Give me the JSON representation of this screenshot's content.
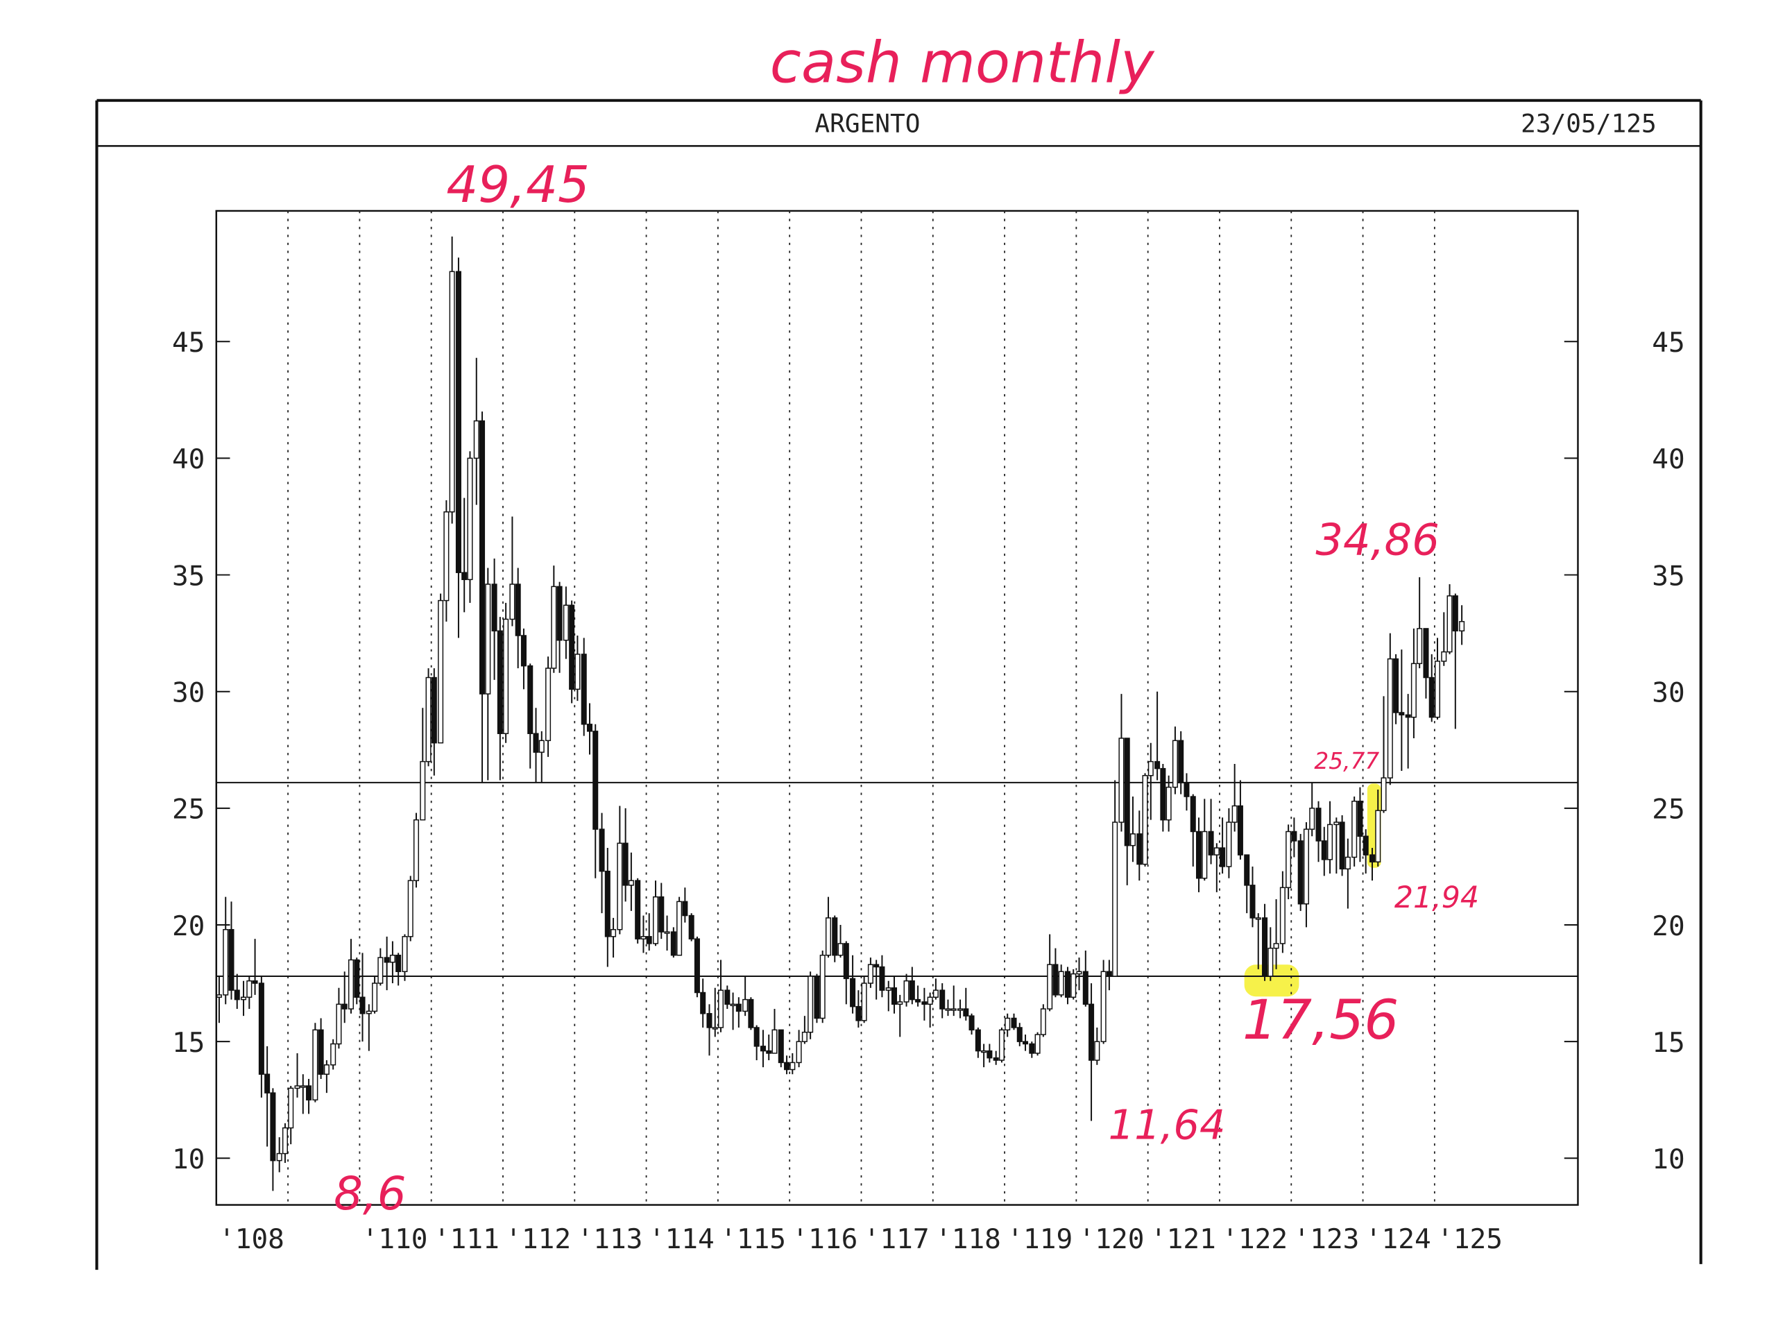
{
  "note": "cash monthly",
  "chart_data": {
    "type": "candlestick",
    "title": "ARGENTO",
    "date": "23/05/125",
    "xlim": [
      108,
      127
    ],
    "ylim": [
      8,
      50.6
    ],
    "xticks": [
      {
        "value": 108,
        "label": "'108"
      },
      {
        "value": 109,
        "label": null
      },
      {
        "value": 110,
        "label": "'110"
      },
      {
        "value": 111,
        "label": "'111"
      },
      {
        "value": 112,
        "label": "'112"
      },
      {
        "value": 113,
        "label": "'113"
      },
      {
        "value": 114,
        "label": "'114"
      },
      {
        "value": 115,
        "label": "'115"
      },
      {
        "value": 116,
        "label": "'116"
      },
      {
        "value": 117,
        "label": "'117"
      },
      {
        "value": 118,
        "label": "'118"
      },
      {
        "value": 119,
        "label": "'119"
      },
      {
        "value": 120,
        "label": "'120"
      },
      {
        "value": 121,
        "label": "'121"
      },
      {
        "value": 122,
        "label": "'122"
      },
      {
        "value": 123,
        "label": "'123"
      },
      {
        "value": 124,
        "label": "'124"
      },
      {
        "value": 125,
        "label": "'125"
      }
    ],
    "yticks": [
      10,
      15,
      20,
      25,
      30,
      35,
      40,
      45
    ],
    "hlines": [
      26.1,
      17.8
    ],
    "annotations": [
      "49,45",
      "34,86",
      "25,77",
      "21,94",
      "17,56",
      "11,64",
      "8,6"
    ],
    "x": [
      108.04,
      108.13,
      108.21,
      108.29,
      108.38,
      108.46,
      108.54,
      108.63,
      108.71,
      108.79,
      108.88,
      108.96,
      109.04,
      109.13,
      109.21,
      109.29,
      109.38,
      109.46,
      109.54,
      109.63,
      109.71,
      109.79,
      109.88,
      109.96,
      110.04,
      110.13,
      110.21,
      110.29,
      110.38,
      110.46,
      110.54,
      110.63,
      110.71,
      110.79,
      110.88,
      110.96,
      111.04,
      111.13,
      111.21,
      111.29,
      111.38,
      111.46,
      111.54,
      111.63,
      111.71,
      111.79,
      111.88,
      111.96,
      112.04,
      112.13,
      112.21,
      112.29,
      112.38,
      112.46,
      112.54,
      112.63,
      112.71,
      112.79,
      112.88,
      112.96,
      113.04,
      113.13,
      113.21,
      113.29,
      113.38,
      113.46,
      113.54,
      113.63,
      113.71,
      113.79,
      113.88,
      113.96,
      114.04,
      114.13,
      114.21,
      114.29,
      114.38,
      114.46,
      114.54,
      114.63,
      114.71,
      114.79,
      114.88,
      114.96,
      115.04,
      115.13,
      115.21,
      115.29,
      115.38,
      115.46,
      115.54,
      115.63,
      115.71,
      115.79,
      115.88,
      115.96,
      116.04,
      116.13,
      116.21,
      116.29,
      116.38,
      116.46,
      116.54,
      116.63,
      116.71,
      116.79,
      116.88,
      116.96,
      117.04,
      117.13,
      117.21,
      117.29,
      117.38,
      117.46,
      117.54,
      117.63,
      117.71,
      117.79,
      117.88,
      117.96,
      118.04,
      118.13,
      118.21,
      118.29,
      118.38,
      118.46,
      118.54,
      118.63,
      118.71,
      118.79,
      118.88,
      118.96,
      119.04,
      119.13,
      119.21,
      119.29,
      119.38,
      119.46,
      119.54,
      119.63,
      119.71,
      119.79,
      119.88,
      119.96,
      120.04,
      120.13,
      120.21,
      120.29,
      120.38,
      120.46,
      120.54,
      120.63,
      120.71,
      120.79,
      120.88,
      120.96,
      121.04,
      121.13,
      121.21,
      121.29,
      121.38,
      121.46,
      121.54,
      121.63,
      121.71,
      121.79,
      121.88,
      121.96,
      122.04,
      122.13,
      122.21,
      122.29,
      122.38,
      122.46,
      122.54,
      122.63,
      122.71,
      122.79,
      122.88,
      122.96,
      123.04,
      123.13,
      123.21,
      123.29,
      123.38,
      123.46,
      123.54,
      123.63,
      123.71,
      123.79,
      123.88,
      123.96,
      124.04,
      124.13,
      124.21,
      124.29,
      124.38,
      124.46,
      124.54,
      124.63,
      124.71,
      124.79,
      124.88,
      124.96,
      125.04,
      125.13,
      125.21,
      125.29,
      125.38
    ],
    "open": [
      16.9,
      17.0,
      19.8,
      17.2,
      16.8,
      16.9,
      17.6,
      17.5,
      13.6,
      12.8,
      9.9,
      10.2,
      11.3,
      13.0,
      13.1,
      13.1,
      12.5,
      15.5,
      13.6,
      14.0,
      14.9,
      16.6,
      16.4,
      18.5,
      16.9,
      16.2,
      16.3,
      17.5,
      18.6,
      18.4,
      18.7,
      18.0,
      19.5,
      21.9,
      24.5,
      27.0,
      30.6,
      27.8,
      33.9,
      37.7,
      48.0,
      35.1,
      34.8,
      40.0,
      41.6,
      29.9,
      34.6,
      32.6,
      28.2,
      33.1,
      34.6,
      32.4,
      31.1,
      28.2,
      27.4,
      27.9,
      31.0,
      34.5,
      32.2,
      33.7,
      30.1,
      31.6,
      28.6,
      28.3,
      24.1,
      22.3,
      19.5,
      19.8,
      23.5,
      21.7,
      21.9,
      19.4,
      19.5,
      19.2,
      21.2,
      19.7,
      19.7,
      18.7,
      21.0,
      20.4,
      19.4,
      17.1,
      16.2,
      15.6,
      15.6,
      17.2,
      16.6,
      16.6,
      16.3,
      16.8,
      15.6,
      14.8,
      14.6,
      14.5,
      15.5,
      14.1,
      13.8,
      14.1,
      15.0,
      15.4,
      17.8,
      16.0,
      18.7,
      20.3,
      18.7,
      19.2,
      17.7,
      16.5,
      15.9,
      17.5,
      18.3,
      18.2,
      17.2,
      17.3,
      16.6,
      16.7,
      17.6,
      16.8,
      16.7,
      16.6,
      16.9,
      17.2,
      16.4,
      16.4,
      16.4,
      16.4,
      16.1,
      15.5,
      14.6,
      14.6,
      14.3,
      14.2,
      15.5,
      16.0,
      15.6,
      15.0,
      14.9,
      14.5,
      15.3,
      16.4,
      18.3,
      17.0,
      18.0,
      16.9,
      17.9,
      18.0,
      16.6,
      14.2,
      15.0,
      18.0,
      17.8,
      24.4,
      28.0,
      23.4,
      23.9,
      22.6,
      26.4,
      27.0,
      26.7,
      24.5,
      25.9,
      27.9,
      26.1,
      25.5,
      24.0,
      22.0,
      24.0,
      23.0,
      23.3,
      22.5,
      24.4,
      25.1,
      23.0,
      21.7,
      20.3,
      20.3,
      17.8,
      19.0,
      19.2,
      21.6,
      24.0,
      23.6,
      20.9,
      24.1,
      25.0,
      23.6,
      22.8,
      24.3,
      24.4,
      22.4,
      22.9,
      25.3,
      23.8,
      23.0,
      22.7,
      24.9,
      26.3,
      31.4,
      29.1,
      29.0,
      28.9,
      31.2,
      32.7,
      30.6,
      28.9,
      31.3,
      31.7,
      34.1,
      32.6
    ],
    "high": [
      17.8,
      21.2,
      21.0,
      17.9,
      17.6,
      17.8,
      19.4,
      17.8,
      14.8,
      13.0,
      10.9,
      11.5,
      13.1,
      14.5,
      13.6,
      13.4,
      15.8,
      16.0,
      14.2,
      15.1,
      17.3,
      18.0,
      19.4,
      18.6,
      18.8,
      16.6,
      17.8,
      19.0,
      19.5,
      19.3,
      18.8,
      19.6,
      22.1,
      24.8,
      29.3,
      31.0,
      31.0,
      34.2,
      38.2,
      49.5,
      48.6,
      38.3,
      40.3,
      44.3,
      42.0,
      35.3,
      35.7,
      33.2,
      33.8,
      37.5,
      35.3,
      32.7,
      31.2,
      29.3,
      28.3,
      31.5,
      35.4,
      34.7,
      34.5,
      33.9,
      32.4,
      32.3,
      29.5,
      28.6,
      24.8,
      23.3,
      20.3,
      25.1,
      25.0,
      23.1,
      22.0,
      20.4,
      20.5,
      21.9,
      21.8,
      20.4,
      19.9,
      21.2,
      21.6,
      20.5,
      19.5,
      17.7,
      16.6,
      17.3,
      18.5,
      17.4,
      17.1,
      16.9,
      17.8,
      16.9,
      15.7,
      15.5,
      15.3,
      16.4,
      15.5,
      14.4,
      14.5,
      15.5,
      16.1,
      18.0,
      17.9,
      18.9,
      21.2,
      20.4,
      20.0,
      19.3,
      18.7,
      17.2,
      17.8,
      18.6,
      18.5,
      18.7,
      17.6,
      17.8,
      17.0,
      17.9,
      18.2,
      17.4,
      17.3,
      17.1,
      17.7,
      17.5,
      16.8,
      17.4,
      16.8,
      17.3,
      16.2,
      15.6,
      14.9,
      14.9,
      14.6,
      15.6,
      16.2,
      16.2,
      15.8,
      15.3,
      15.0,
      15.4,
      16.6,
      19.6,
      19.0,
      18.3,
      18.2,
      18.1,
      18.6,
      18.9,
      17.5,
      15.6,
      18.5,
      18.5,
      26.2,
      29.9,
      28.0,
      25.5,
      24.9,
      26.5,
      27.8,
      30.0,
      26.9,
      26.4,
      28.5,
      28.3,
      26.5,
      25.6,
      24.6,
      25.4,
      25.4,
      23.5,
      24.6,
      25.0,
      26.9,
      26.2,
      22.8,
      22.5,
      20.5,
      20.9,
      19.9,
      21.1,
      22.3,
      24.3,
      24.6,
      23.9,
      24.4,
      26.1,
      25.3,
      24.2,
      25.3,
      24.6,
      24.7,
      23.7,
      25.5,
      25.9,
      24.1,
      23.3,
      25.8,
      29.8,
      32.5,
      31.6,
      31.8,
      29.9,
      32.7,
      34.9,
      32.3,
      31.6,
      32.3,
      33.4,
      34.6,
      34.2,
      33.7
    ],
    "low": [
      15.8,
      16.6,
      16.8,
      16.4,
      16.1,
      16.4,
      17.0,
      12.6,
      10.5,
      8.6,
      9.4,
      9.8,
      10.6,
      12.6,
      11.9,
      11.9,
      12.4,
      13.4,
      12.8,
      13.8,
      14.7,
      15.8,
      16.2,
      16.6,
      15.0,
      14.6,
      16.2,
      17.4,
      17.2,
      17.5,
      17.4,
      17.6,
      19.3,
      21.6,
      24.5,
      26.8,
      26.4,
      27.9,
      33.0,
      37.2,
      32.3,
      33.4,
      33.8,
      38.0,
      26.1,
      26.2,
      30.5,
      26.2,
      27.8,
      32.8,
      31.0,
      30.1,
      26.7,
      26.1,
      26.1,
      27.2,
      30.8,
      30.8,
      31.4,
      29.5,
      29.6,
      28.1,
      27.3,
      22.0,
      20.5,
      18.2,
      18.6,
      19.6,
      21.0,
      20.6,
      19.2,
      18.8,
      18.9,
      19.1,
      19.4,
      18.9,
      18.6,
      18.7,
      20.1,
      19.3,
      16.9,
      15.6,
      14.4,
      15.2,
      15.4,
      16.4,
      15.5,
      15.6,
      16.1,
      15.5,
      14.2,
      13.9,
      14.2,
      14.5,
      13.9,
      13.6,
      13.6,
      13.9,
      14.9,
      15.1,
      15.8,
      15.8,
      18.6,
      18.4,
      18.6,
      16.6,
      16.2,
      15.6,
      15.8,
      17.3,
      16.8,
      16.9,
      16.3,
      16.2,
      15.2,
      16.5,
      16.6,
      16.5,
      15.9,
      15.6,
      16.8,
      16.0,
      16.1,
      16.1,
      16.0,
      15.9,
      15.3,
      14.3,
      13.9,
      14.1,
      14.0,
      14.1,
      15.2,
      15.5,
      14.8,
      14.6,
      14.3,
      14.4,
      15.2,
      16.3,
      16.9,
      16.9,
      16.6,
      16.8,
      17.2,
      16.5,
      11.6,
      14.0,
      14.9,
      17.2,
      17.8,
      24.0,
      21.7,
      22.7,
      21.9,
      22.5,
      24.5,
      26.2,
      24.0,
      24.0,
      25.6,
      25.6,
      24.9,
      22.5,
      21.4,
      21.9,
      22.6,
      21.4,
      22.2,
      22.0,
      24.0,
      22.8,
      20.5,
      19.9,
      18.1,
      17.6,
      17.6,
      18.1,
      18.8,
      21.1,
      22.9,
      20.6,
      19.9,
      23.8,
      22.7,
      22.1,
      22.2,
      22.2,
      22.1,
      20.7,
      22.5,
      22.7,
      22.2,
      21.9,
      22.5,
      24.8,
      26.0,
      28.6,
      26.6,
      26.7,
      28.0,
      31.0,
      29.7,
      28.7,
      28.8,
      31.1,
      31.6,
      28.4,
      32.0
    ],
    "close": [
      17.0,
      19.8,
      17.2,
      16.8,
      16.9,
      17.6,
      17.5,
      13.6,
      12.8,
      9.9,
      10.2,
      11.3,
      13.0,
      13.1,
      13.1,
      12.5,
      15.5,
      13.6,
      14.0,
      14.9,
      16.6,
      16.4,
      18.5,
      16.9,
      16.2,
      16.3,
      17.5,
      18.6,
      18.4,
      18.7,
      18.0,
      19.5,
      21.9,
      24.5,
      27.0,
      30.6,
      27.8,
      33.9,
      37.7,
      48.0,
      35.1,
      34.8,
      40.0,
      41.6,
      29.9,
      34.6,
      32.6,
      28.2,
      33.1,
      34.6,
      32.4,
      31.1,
      28.2,
      27.4,
      27.9,
      31.0,
      34.5,
      32.2,
      33.7,
      30.1,
      31.6,
      28.6,
      28.3,
      24.1,
      22.3,
      19.5,
      19.8,
      23.5,
      21.7,
      21.9,
      19.4,
      19.5,
      19.2,
      21.2,
      19.7,
      19.7,
      18.7,
      21.0,
      20.4,
      19.4,
      17.1,
      16.2,
      15.6,
      15.6,
      17.2,
      16.6,
      16.6,
      16.3,
      16.8,
      15.6,
      14.8,
      14.6,
      14.5,
      15.5,
      14.1,
      13.8,
      14.1,
      15.0,
      15.4,
      17.8,
      16.0,
      18.7,
      20.3,
      18.7,
      19.2,
      17.7,
      16.5,
      15.9,
      17.5,
      18.3,
      18.2,
      17.2,
      17.3,
      16.6,
      16.7,
      17.6,
      16.8,
      16.7,
      16.6,
      16.9,
      17.2,
      16.4,
      16.4,
      16.4,
      16.4,
      16.1,
      15.5,
      14.6,
      14.6,
      14.3,
      14.2,
      15.5,
      16.0,
      15.6,
      15.0,
      14.9,
      14.5,
      15.3,
      16.4,
      18.3,
      17.0,
      18.0,
      16.9,
      17.9,
      18.0,
      16.6,
      14.2,
      15.0,
      18.0,
      17.8,
      24.4,
      28.0,
      23.4,
      23.9,
      22.6,
      26.4,
      27.0,
      26.7,
      24.5,
      25.9,
      27.9,
      26.1,
      25.5,
      24.0,
      22.0,
      24.0,
      23.0,
      23.3,
      22.5,
      24.4,
      25.1,
      23.0,
      21.7,
      20.3,
      20.3,
      17.8,
      19.0,
      19.2,
      21.6,
      24.0,
      23.6,
      20.9,
      24.1,
      25.0,
      23.6,
      22.8,
      24.3,
      24.4,
      22.4,
      22.9,
      25.3,
      23.8,
      23.0,
      22.7,
      24.9,
      26.3,
      31.4,
      29.1,
      29.0,
      28.9,
      31.2,
      32.7,
      30.6,
      28.9,
      31.3,
      31.7,
      34.1,
      32.6,
      33.0
    ]
  }
}
